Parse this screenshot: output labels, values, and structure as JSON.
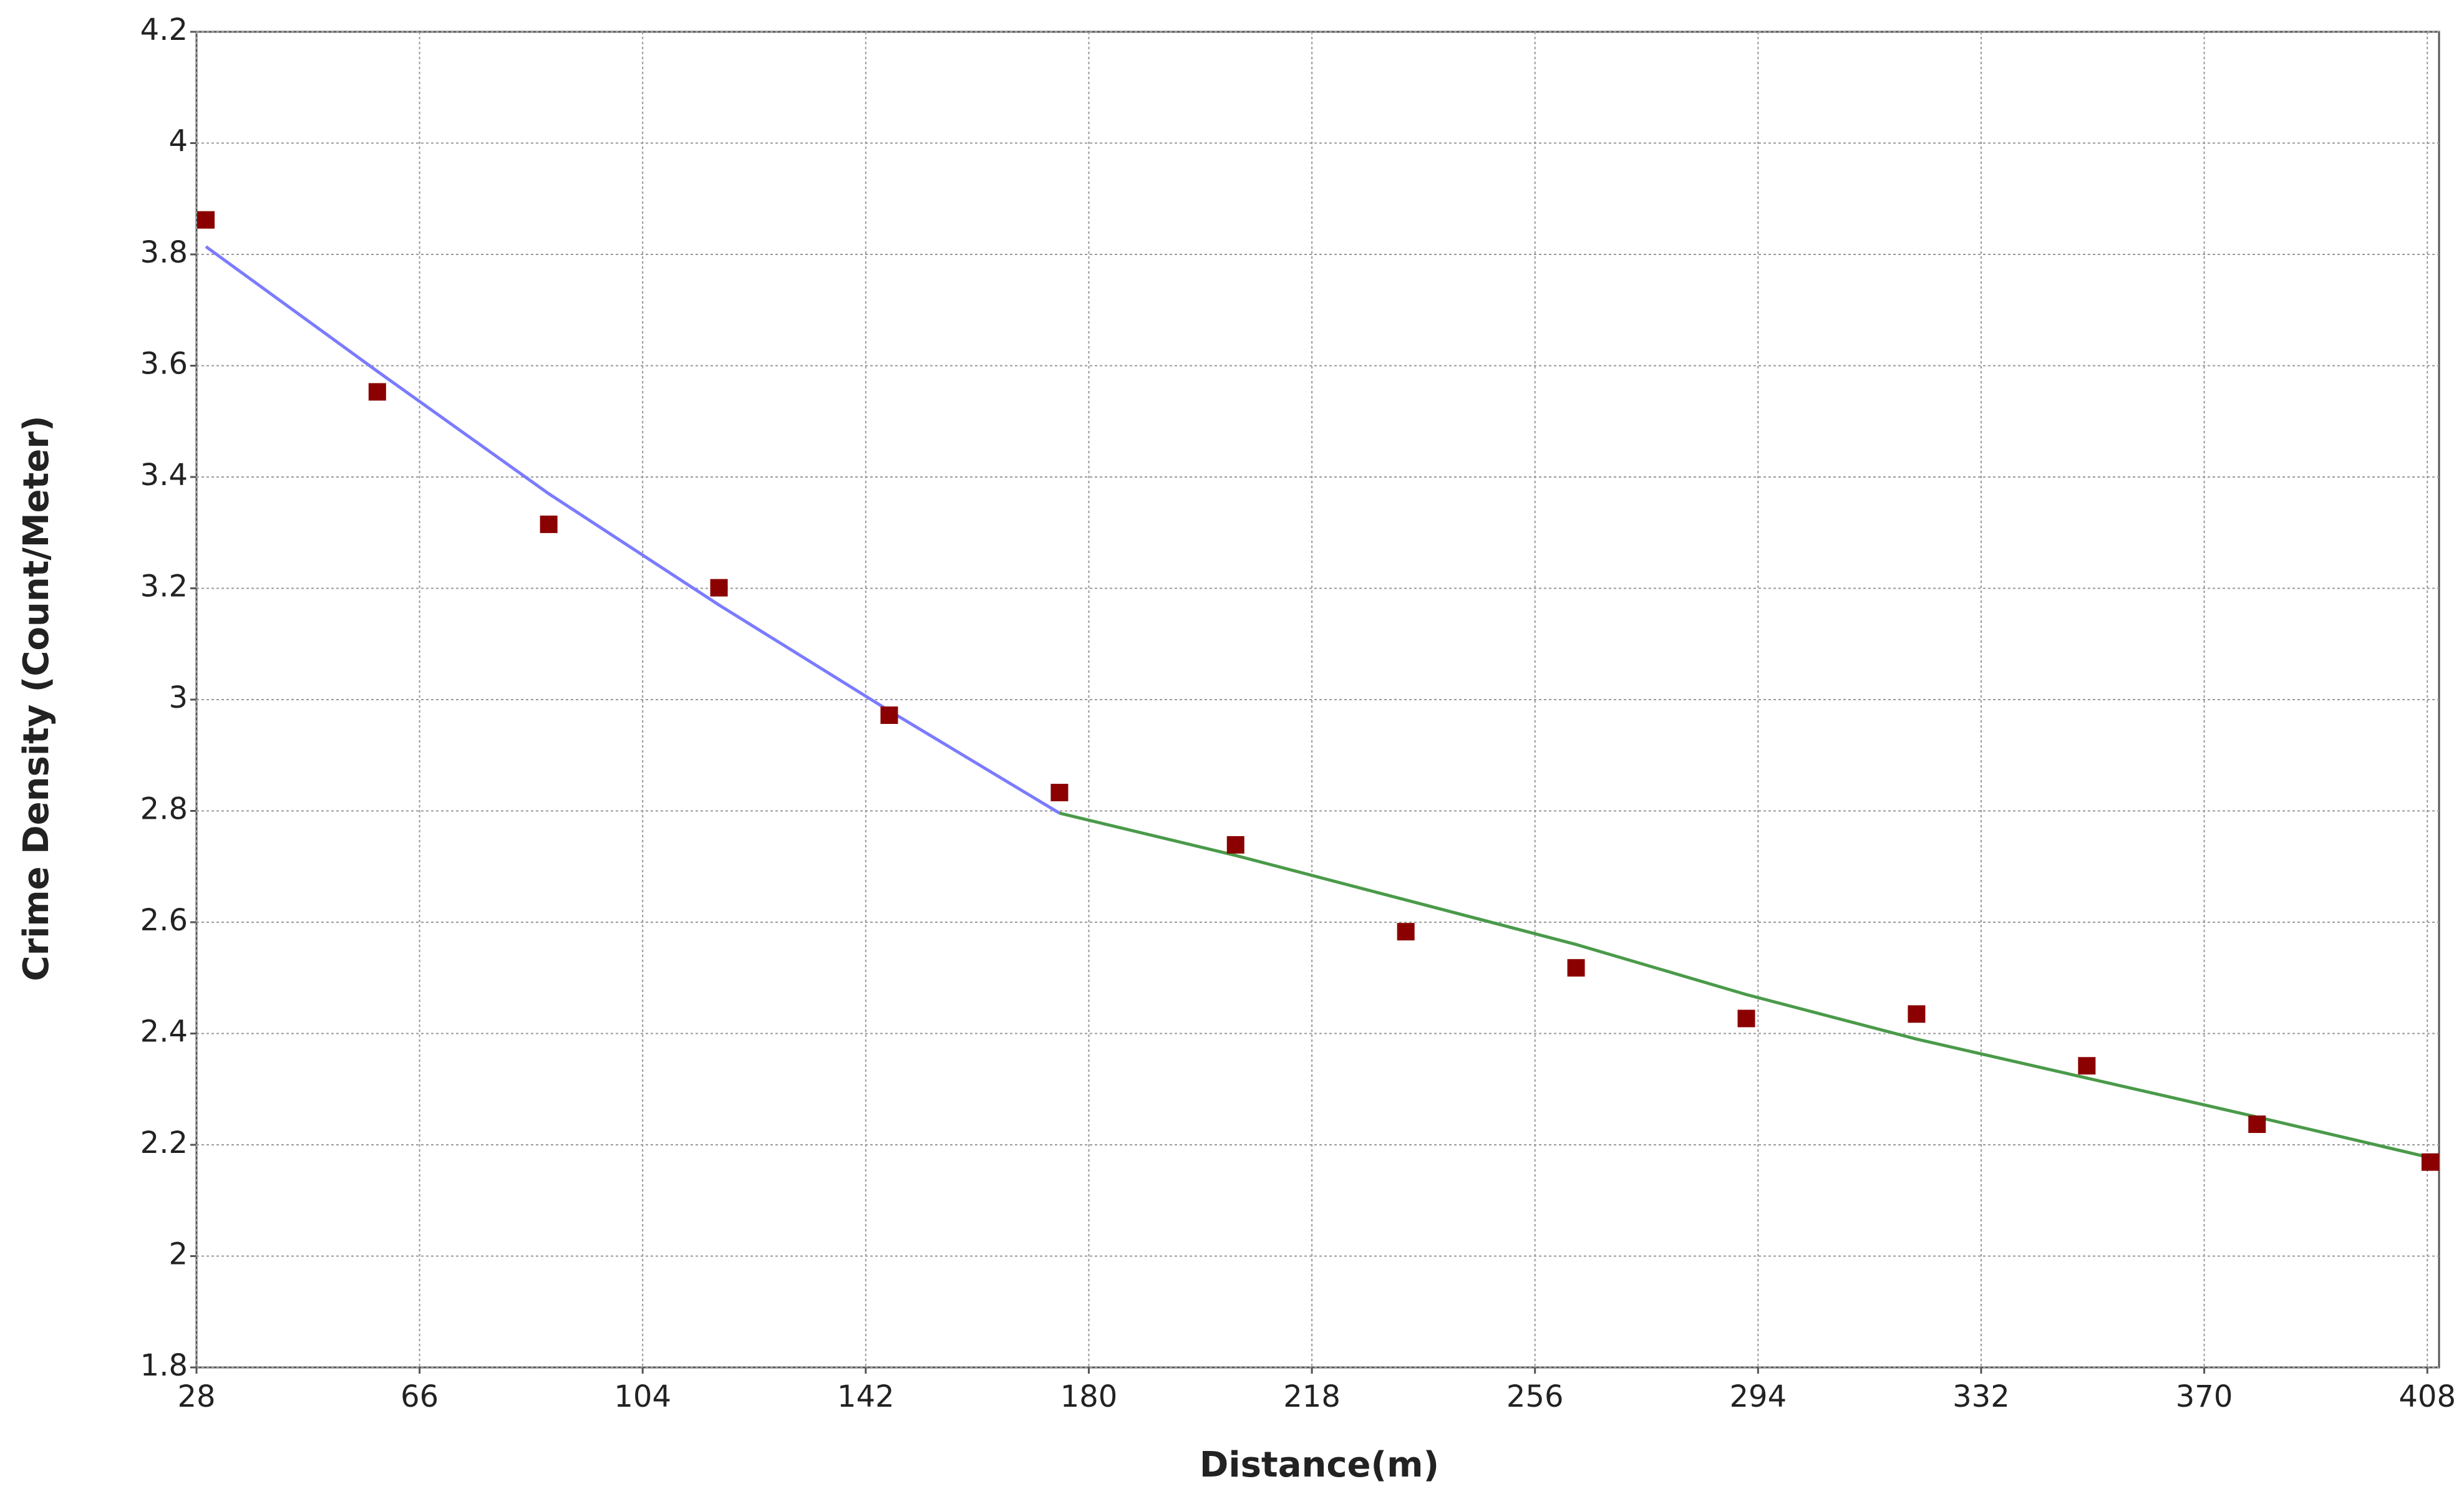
{
  "chart_data": {
    "type": "scatter",
    "x_label": "Distance(m)",
    "y_label": "Crime Density (Count/Meter)",
    "xlim": [
      28,
      410
    ],
    "ylim": [
      1.8,
      4.2
    ],
    "xticks": [
      28,
      66,
      104,
      142,
      180,
      218,
      256,
      294,
      332,
      370,
      408
    ],
    "yticks": [
      1.8,
      2,
      2.2,
      2.4,
      2.6,
      2.8,
      3,
      3.2,
      3.4,
      3.6,
      3.8,
      4,
      4.2
    ],
    "grid": true,
    "series": [
      {
        "type": "scatter",
        "color": "#8b0000",
        "x": [
          29.6,
          58.8,
          88,
          117,
          146,
          175,
          205,
          234,
          263,
          292,
          321,
          350,
          379,
          408.5
        ],
        "values": [
          3.862,
          3.553,
          3.315,
          3.201,
          2.972,
          2.833,
          2.739,
          2.583,
          2.518,
          2.427,
          2.435,
          2.342,
          2.237,
          2.169
        ]
      },
      {
        "type": "line",
        "color": "#7b7bff",
        "x": [
          29.6,
          58.8,
          88,
          117,
          146,
          175
        ],
        "values": [
          3.814,
          3.59,
          3.37,
          3.17,
          2.98,
          2.796
        ]
      },
      {
        "type": "line",
        "color": "#4a9a4a",
        "x": [
          175,
          205,
          234,
          263,
          292,
          321,
          350,
          379,
          408.5
        ],
        "values": [
          2.796,
          2.72,
          2.64,
          2.56,
          2.47,
          2.39,
          2.32,
          2.25,
          2.177
        ]
      }
    ]
  }
}
